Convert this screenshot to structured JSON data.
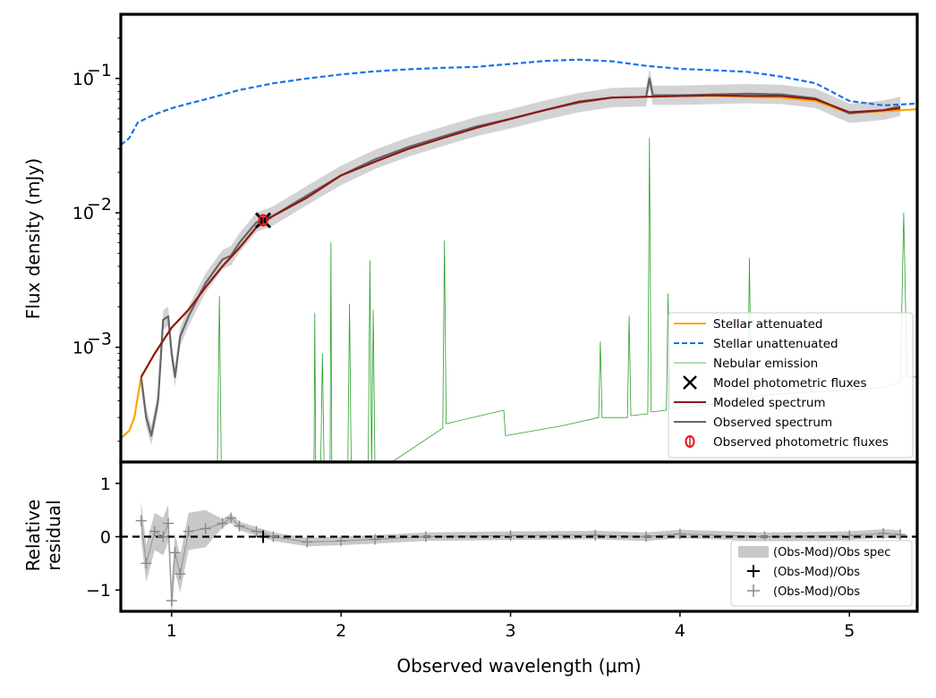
{
  "chart_data": [
    {
      "type": "line",
      "panel": "top",
      "title": "",
      "xlabel": "",
      "ylabel": "Flux density (mJy)",
      "yscale": "log",
      "xlim": [
        0.7,
        5.4
      ],
      "ylim": [
        0.00014,
        0.3
      ],
      "yticks": [
        {
          "value": 0.001,
          "base": "10",
          "exp": "−3"
        },
        {
          "value": 0.01,
          "base": "10",
          "exp": "−2"
        },
        {
          "value": 0.1,
          "base": "10",
          "exp": "−1"
        }
      ],
      "legend_position": "lower-right",
      "series": [
        {
          "name": "Stellar attenuated",
          "color": "#FFA500",
          "style": "solid",
          "x": [
            0.7,
            0.75,
            0.78,
            0.82,
            0.9,
            1.0,
            1.1,
            1.2,
            1.3,
            1.4,
            1.5,
            1.6,
            1.8,
            2.0,
            2.2,
            2.4,
            2.6,
            2.8,
            3.0,
            3.2,
            3.4,
            3.6,
            3.8,
            4.0,
            4.2,
            4.4,
            4.6,
            4.8,
            5.0,
            5.2,
            5.4
          ],
          "y": [
            0.00021,
            0.00024,
            0.0003,
            0.0006,
            0.0009,
            0.0014,
            0.0019,
            0.0028,
            0.004,
            0.0055,
            0.0078,
            0.0095,
            0.013,
            0.019,
            0.024,
            0.03,
            0.036,
            0.043,
            0.05,
            0.058,
            0.067,
            0.072,
            0.073,
            0.074,
            0.074,
            0.073,
            0.072,
            0.068,
            0.055,
            0.057,
            0.059
          ]
        },
        {
          "name": "Stellar unattenuated",
          "color": "#1A73E8",
          "style": "dashed",
          "x": [
            0.7,
            0.75,
            0.8,
            0.9,
            1.0,
            1.1,
            1.2,
            1.4,
            1.6,
            1.8,
            2.0,
            2.2,
            2.4,
            2.6,
            2.8,
            3.0,
            3.2,
            3.4,
            3.6,
            3.8,
            4.0,
            4.2,
            4.4,
            4.6,
            4.8,
            5.0,
            5.2,
            5.4
          ],
          "y": [
            0.032,
            0.036,
            0.047,
            0.054,
            0.06,
            0.065,
            0.07,
            0.082,
            0.092,
            0.1,
            0.107,
            0.113,
            0.117,
            0.12,
            0.122,
            0.128,
            0.135,
            0.138,
            0.134,
            0.124,
            0.118,
            0.115,
            0.112,
            0.103,
            0.092,
            0.068,
            0.063,
            0.065
          ]
        },
        {
          "name": "Nebular emission",
          "color": "#2CA02C",
          "style": "solid-thin",
          "x": [
            1.27,
            1.282,
            1.293,
            1.52,
            1.65,
            1.84,
            1.845,
            1.85,
            1.88,
            1.89,
            1.9,
            1.935,
            1.94,
            1.945,
            2.04,
            2.05,
            2.06,
            2.16,
            2.17,
            2.18,
            2.19,
            2.2,
            2.3,
            2.6,
            2.61,
            2.62,
            2.96,
            2.97,
            3.3,
            3.52,
            3.53,
            3.54,
            3.69,
            3.7,
            3.71,
            3.81,
            3.82,
            3.83,
            3.92,
            3.93,
            3.94,
            4.2,
            4.4,
            4.41,
            4.42,
            4.6,
            5.2,
            5.3,
            5.32,
            5.34,
            5.4
          ],
          "y": [
            0.00013,
            0.0024,
            0.00013,
            0.00013,
            0.00013,
            0.00013,
            0.0018,
            0.00013,
            0.00013,
            0.0009,
            0.00013,
            0.00013,
            0.006,
            0.00013,
            0.00013,
            0.0021,
            0.00013,
            0.00013,
            0.0044,
            0.00013,
            0.0019,
            0.00013,
            0.00014,
            0.00025,
            0.0062,
            0.00027,
            0.00034,
            0.00022,
            0.00026,
            0.0003,
            0.0011,
            0.0003,
            0.0003,
            0.0017,
            0.00031,
            0.00032,
            0.036,
            0.00033,
            0.00034,
            0.0025,
            0.00035,
            0.00038,
            0.00042,
            0.0046,
            0.00043,
            0.00045,
            0.0005,
            0.00055,
            0.01,
            0.0006,
            0.0006
          ]
        },
        {
          "name": "Modeled spectrum",
          "color": "#8B1A1A",
          "style": "solid",
          "x": [
            0.82,
            0.9,
            1.0,
            1.1,
            1.2,
            1.3,
            1.4,
            1.5,
            1.6,
            1.8,
            2.0,
            2.2,
            2.4,
            2.6,
            2.8,
            3.0,
            3.2,
            3.4,
            3.6,
            3.8,
            4.0,
            4.2,
            4.4,
            4.6,
            4.8,
            5.0,
            5.2,
            5.3
          ],
          "y": [
            0.0006,
            0.0009,
            0.0014,
            0.0019,
            0.0028,
            0.004,
            0.0055,
            0.0078,
            0.0095,
            0.013,
            0.019,
            0.024,
            0.03,
            0.036,
            0.043,
            0.05,
            0.058,
            0.067,
            0.072,
            0.073,
            0.074,
            0.075,
            0.074,
            0.074,
            0.07,
            0.056,
            0.058,
            0.06
          ]
        },
        {
          "name": "Observed spectrum",
          "color": "#666666",
          "style": "solid",
          "x": [
            0.82,
            0.85,
            0.88,
            0.92,
            0.95,
            0.98,
            1.0,
            1.02,
            1.05,
            1.1,
            1.2,
            1.3,
            1.35,
            1.4,
            1.5,
            1.6,
            1.8,
            2.0,
            2.2,
            2.4,
            2.6,
            2.8,
            3.0,
            3.2,
            3.4,
            3.6,
            3.8,
            3.82,
            3.84,
            4.0,
            4.2,
            4.4,
            4.6,
            4.8,
            5.0,
            5.2,
            5.3
          ],
          "y": [
            0.0006,
            0.0003,
            0.00022,
            0.0004,
            0.0016,
            0.0017,
            0.0009,
            0.0006,
            0.0012,
            0.0017,
            0.003,
            0.0045,
            0.0048,
            0.006,
            0.0085,
            0.0095,
            0.0135,
            0.019,
            0.025,
            0.031,
            0.037,
            0.044,
            0.05,
            0.058,
            0.066,
            0.072,
            0.073,
            0.1,
            0.075,
            0.075,
            0.076,
            0.077,
            0.076,
            0.071,
            0.055,
            0.058,
            0.062
          ]
        }
      ],
      "markers": [
        {
          "name": "Model photometric fluxes",
          "x": 1.54,
          "y": 0.0088,
          "color": "#000000",
          "symbol": "x"
        },
        {
          "name": "Observed photometric fluxes",
          "x": 1.54,
          "y": 0.0088,
          "color": "#E8151B",
          "symbol": "circle-errorbar"
        }
      ]
    },
    {
      "type": "scatter",
      "panel": "bottom",
      "xlabel": "Observed wavelength (μm)",
      "ylabel_lines": [
        "Relative",
        "residual"
      ],
      "xlim": [
        0.7,
        5.4
      ],
      "ylim": [
        -1.4,
        1.4
      ],
      "xticks": [
        1,
        2,
        3,
        4,
        5
      ],
      "xtick_labels": [
        "1",
        "2",
        "3",
        "4",
        "5"
      ],
      "yticks": [
        -1,
        0,
        1
      ],
      "ytick_labels": [
        "−1",
        "0",
        "1"
      ],
      "reference_line": {
        "y": 0,
        "style": "dashed",
        "color": "#000000"
      },
      "legend_position": "lower-right",
      "legend": [
        {
          "label": "(Obs-Mod)/Obs spec",
          "symbol": "band",
          "color": "#C8C8C8"
        },
        {
          "label": "(Obs-Mod)/Obs",
          "symbol": "plus",
          "color": "#000000"
        },
        {
          "label": "(Obs-Mod)/Obs",
          "symbol": "plus",
          "color": "#888888"
        }
      ],
      "residual_points": {
        "x": [
          0.82,
          0.85,
          0.9,
          0.95,
          0.98,
          1.0,
          1.02,
          1.05,
          1.1,
          1.2,
          1.3,
          1.35,
          1.4,
          1.5,
          1.6,
          1.8,
          2.0,
          2.2,
          2.5,
          3.0,
          3.5,
          3.8,
          4.0,
          4.5,
          5.0,
          5.2,
          5.3
        ],
        "y": [
          0.3,
          -0.5,
          0.1,
          0.0,
          0.25,
          -1.2,
          -0.3,
          -0.7,
          0.1,
          0.15,
          0.25,
          0.35,
          0.2,
          0.1,
          0.0,
          -0.1,
          -0.08,
          -0.05,
          0.0,
          0.02,
          0.03,
          0.0,
          0.05,
          0.0,
          0.02,
          0.06,
          0.04
        ]
      },
      "photometric_residual": {
        "x": 1.54,
        "y": 0.0
      }
    }
  ]
}
